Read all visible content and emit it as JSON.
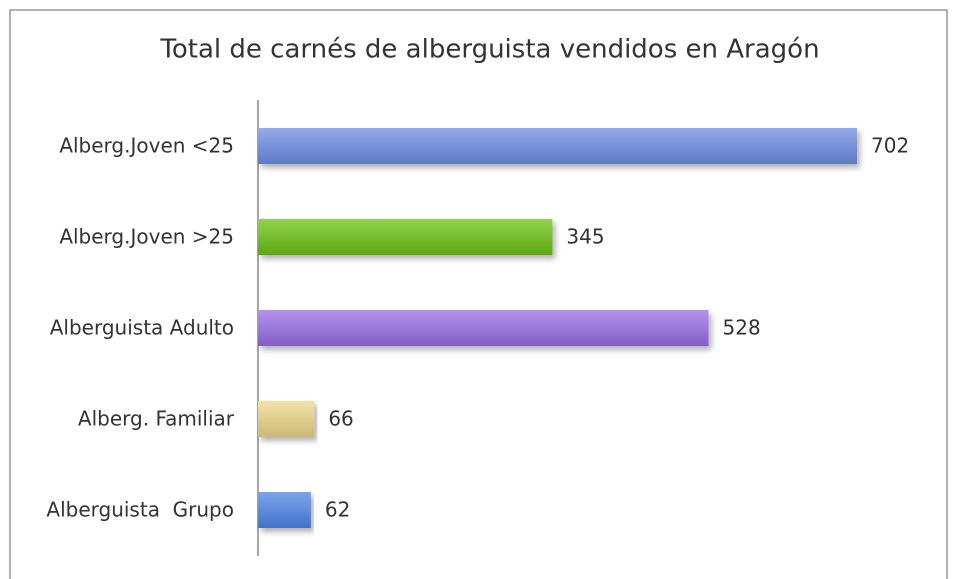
{
  "chart_data": {
    "type": "bar",
    "orientation": "horizontal",
    "title": "Total de carnés de alberguista vendidos en Aragón",
    "categories": [
      "Alberg.Joven <25",
      "Alberg.Joven >25",
      "Alberguista Adulto",
      "Alberg. Familiar",
      "Alberguista  Grupo"
    ],
    "values": [
      702,
      345,
      528,
      66,
      62
    ],
    "colors": [
      "#6f8fe6",
      "#6cc414",
      "#9a6ee8",
      "#efd98a",
      "#4f86ea"
    ]
  }
}
